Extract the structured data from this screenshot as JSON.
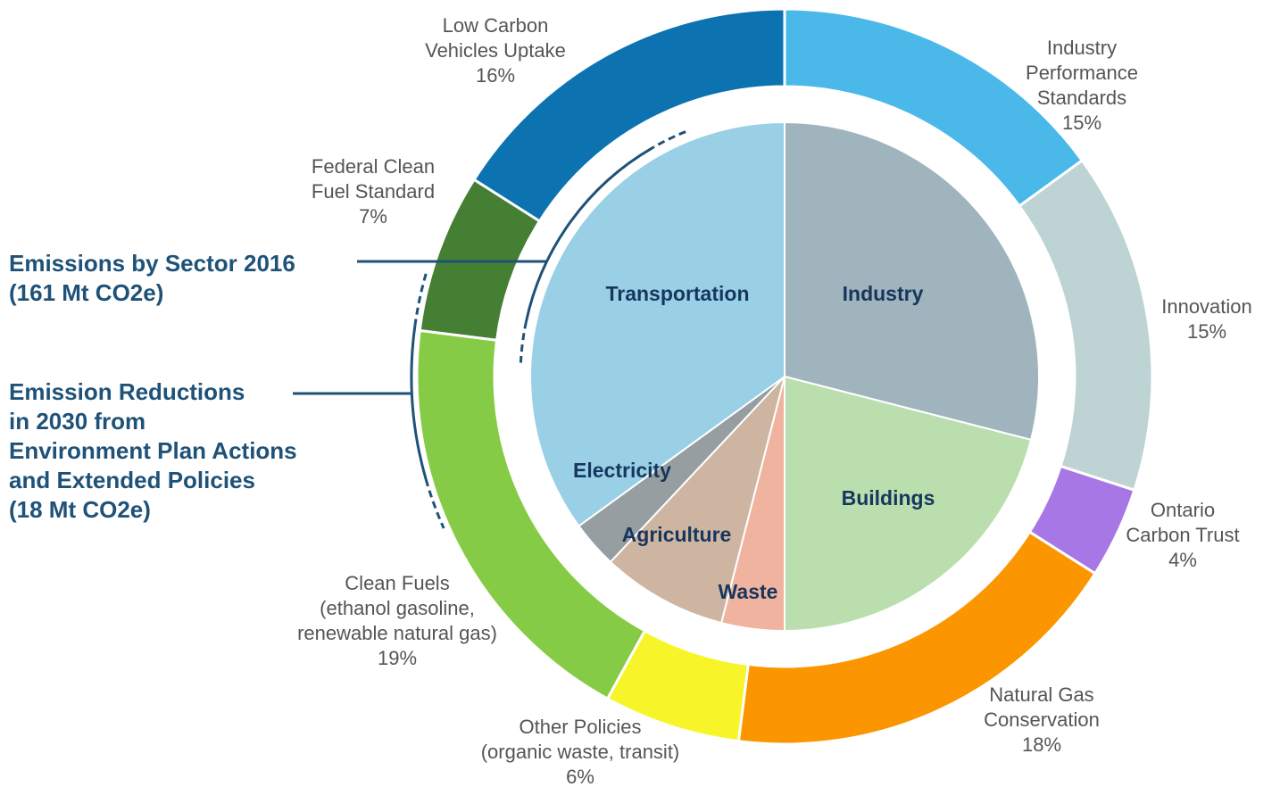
{
  "chart_data": [
    {
      "type": "donut",
      "annotation": "Emission Reductions\nin 2030 from\nEnvironment Plan Actions\nand Extended Policies\n(18 Mt CO2e)",
      "categories": [
        "Industry\nPerformance\nStandards",
        "Innovation",
        "Ontario\nCarbon Trust",
        "Natural Gas\nConservation",
        "Other Policies\n(organic waste, transit)",
        "Clean Fuels\n(ethanol gasoline,\nrenewable natural gas)",
        "Federal Clean\nFuel Standard",
        "Low Carbon\nVehicles Uptake"
      ],
      "values": [
        15,
        15,
        4,
        18,
        6,
        19,
        7,
        16
      ],
      "value_labels": [
        "15%",
        "15%",
        "4%",
        "18%",
        "6%",
        "19%",
        "7%",
        "16%"
      ],
      "colors": [
        "#4ab9ea",
        "#bdd3d4",
        "#a777e6",
        "#fb9600",
        "#f7f52a",
        "#86cb45",
        "#447f33",
        "#0c73b0"
      ]
    },
    {
      "type": "pie",
      "annotation": "Emissions by Sector 2016\n(161 Mt CO2e)",
      "categories": [
        "Industry",
        "Buildings",
        "Waste",
        "Agriculture",
        "Electricity",
        "Transportation"
      ],
      "values": [
        29,
        21,
        4,
        8,
        3,
        35
      ],
      "colors": [
        "#a0b4be",
        "#badeae",
        "#f0b3a0",
        "#cdb5a2",
        "#969ea2",
        "#99d0e6"
      ]
    }
  ]
}
